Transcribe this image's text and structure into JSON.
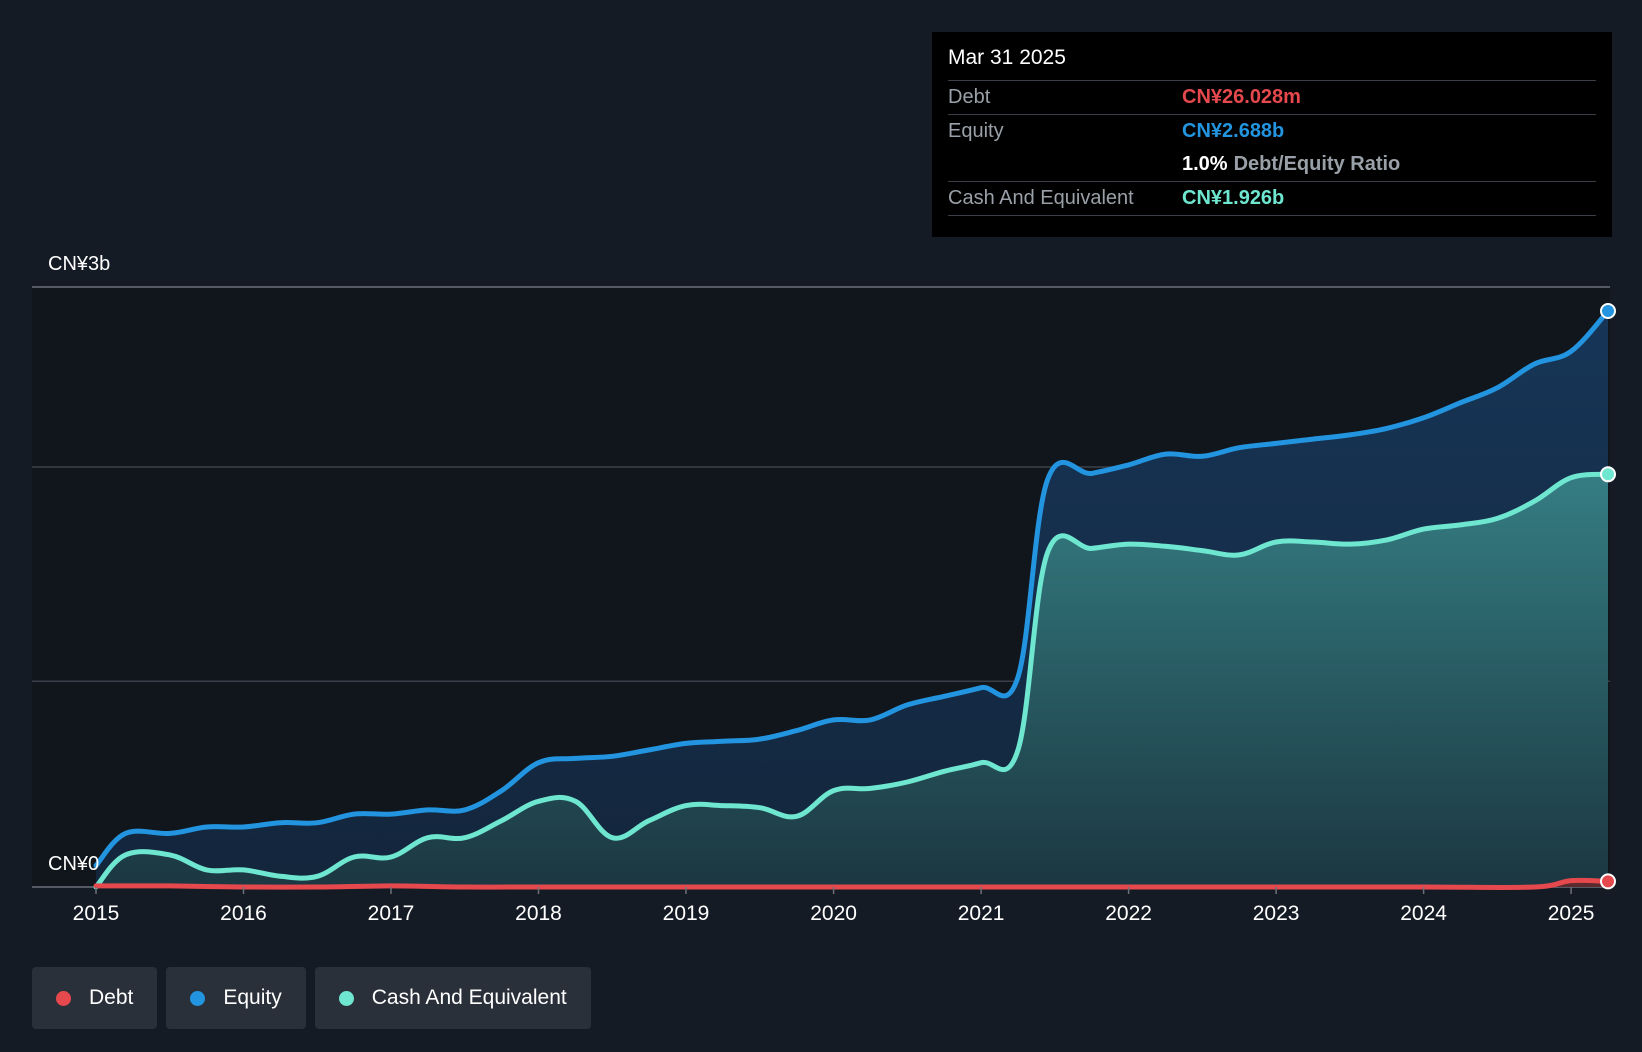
{
  "colors": {
    "background": "#151b24",
    "plot_background": "#11161d",
    "debt": "#e5484d",
    "equity": "#2394df",
    "cash": "#6ee6d0",
    "grid": "#3a4049",
    "tooltip_bg": "#000000"
  },
  "tooltip": {
    "date": "Mar 31 2025",
    "debt_label": "Debt",
    "debt_value": "CN¥26.028m",
    "equity_label": "Equity",
    "equity_value": "CN¥2.688b",
    "ratio_value": "1.0%",
    "ratio_label": "Debt/Equity Ratio",
    "cash_label": "Cash And Equivalent",
    "cash_value": "CN¥1.926b"
  },
  "legend": {
    "items": [
      {
        "label": "Debt",
        "color": "#e5484d"
      },
      {
        "label": "Equity",
        "color": "#2394df"
      },
      {
        "label": "Cash And Equivalent",
        "color": "#6ee6d0"
      }
    ]
  },
  "chart_data": {
    "type": "area",
    "title": "",
    "xlabel": "",
    "ylabel": "",
    "ylim": [
      0,
      2.8
    ],
    "y_unit": "CN¥ billions",
    "y_ticks": [
      {
        "value": 0,
        "label": "CN¥0"
      },
      {
        "value": 2.8,
        "label": "CN¥3b"
      }
    ],
    "gridlines": [
      0.96,
      1.96,
      2.8
    ],
    "xlim": [
      2015.0,
      2025.25
    ],
    "x_ticks": [
      2015,
      2016,
      2017,
      2018,
      2019,
      2020,
      2021,
      2022,
      2023,
      2024,
      2025
    ],
    "x_tick_labels": [
      "2015",
      "2016",
      "2017",
      "2018",
      "2019",
      "2020",
      "2021",
      "2022",
      "2023",
      "2024",
      "2025"
    ],
    "series": [
      {
        "name": "Equity",
        "x": [
          2015.0,
          2015.2,
          2015.5,
          2015.75,
          2016.0,
          2016.25,
          2016.5,
          2016.75,
          2017.0,
          2017.25,
          2017.5,
          2017.75,
          2018.0,
          2018.25,
          2018.5,
          2018.75,
          2019.0,
          2019.25,
          2019.5,
          2019.75,
          2020.0,
          2020.25,
          2020.5,
          2020.75,
          2021.0,
          2021.25,
          2021.45,
          2021.75,
          2022.0,
          2022.25,
          2022.5,
          2022.75,
          2023.0,
          2023.25,
          2023.5,
          2023.75,
          2024.0,
          2024.25,
          2024.5,
          2024.75,
          2025.0,
          2025.25
        ],
        "values": [
          0.1,
          0.25,
          0.25,
          0.28,
          0.28,
          0.3,
          0.3,
          0.34,
          0.34,
          0.36,
          0.36,
          0.45,
          0.58,
          0.6,
          0.61,
          0.64,
          0.67,
          0.68,
          0.69,
          0.73,
          0.78,
          0.78,
          0.85,
          0.89,
          0.93,
          0.98,
          1.9,
          1.93,
          1.97,
          2.02,
          2.01,
          2.05,
          2.07,
          2.09,
          2.11,
          2.14,
          2.19,
          2.26,
          2.33,
          2.44,
          2.5,
          2.688
        ]
      },
      {
        "name": "Cash And Equivalent",
        "x": [
          2015.0,
          2015.2,
          2015.5,
          2015.75,
          2016.0,
          2016.25,
          2016.5,
          2016.75,
          2017.0,
          2017.25,
          2017.5,
          2017.75,
          2018.0,
          2018.25,
          2018.5,
          2018.75,
          2019.0,
          2019.25,
          2019.5,
          2019.75,
          2020.0,
          2020.25,
          2020.5,
          2020.75,
          2021.0,
          2021.25,
          2021.45,
          2021.75,
          2022.0,
          2022.25,
          2022.5,
          2022.75,
          2023.0,
          2023.25,
          2023.5,
          2023.75,
          2024.0,
          2024.25,
          2024.5,
          2024.75,
          2025.0,
          2025.25
        ],
        "values": [
          0.0,
          0.15,
          0.15,
          0.08,
          0.08,
          0.05,
          0.05,
          0.14,
          0.14,
          0.23,
          0.23,
          0.31,
          0.4,
          0.4,
          0.23,
          0.31,
          0.38,
          0.38,
          0.37,
          0.33,
          0.45,
          0.46,
          0.49,
          0.54,
          0.58,
          0.64,
          1.56,
          1.58,
          1.6,
          1.59,
          1.57,
          1.55,
          1.61,
          1.61,
          1.6,
          1.62,
          1.67,
          1.69,
          1.72,
          1.8,
          1.91,
          1.926
        ]
      },
      {
        "name": "Debt",
        "x": [
          2015.0,
          2015.5,
          2016.0,
          2016.5,
          2017.0,
          2017.5,
          2018.0,
          2019.0,
          2020.0,
          2021.0,
          2022.0,
          2023.0,
          2024.0,
          2024.75,
          2025.0,
          2025.25
        ],
        "values": [
          0.005,
          0.005,
          0.0,
          0.0,
          0.005,
          0.0,
          0.0,
          0.0,
          0.0,
          0.0,
          0.0,
          0.0,
          0.0,
          0.0,
          0.03,
          0.026
        ]
      }
    ]
  }
}
